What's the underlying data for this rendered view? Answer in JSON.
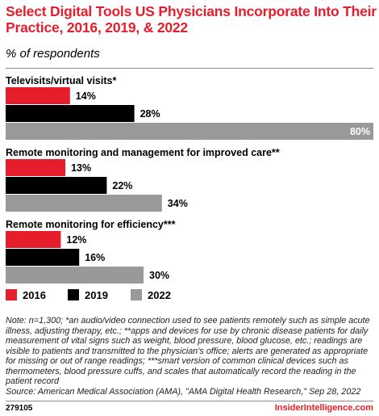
{
  "header": {
    "title": "Select Digital Tools US Physicians Incorporate Into Their Practice, 2016, 2019, & 2022",
    "subtitle": "% of respondents"
  },
  "chart_data": {
    "type": "bar",
    "orientation": "horizontal",
    "categories": [
      "Televisits/virtual visits*",
      "Remote monitoring and management for improved care**",
      "Remote monitoring for efficiency***"
    ],
    "series": [
      {
        "name": "2016",
        "color": "#e61e2b",
        "values": [
          14,
          13,
          12
        ],
        "labels": [
          "14%",
          "13%",
          "12%"
        ]
      },
      {
        "name": "2019",
        "color": "#000000",
        "values": [
          28,
          22,
          16
        ],
        "labels": [
          "28%",
          "22%",
          "16%"
        ]
      },
      {
        "name": "2022",
        "color": "#999999",
        "values": [
          80,
          34,
          30
        ],
        "labels": [
          "80%",
          "34%",
          "30%"
        ]
      }
    ],
    "xlim": [
      0,
      80
    ],
    "unit": "%",
    "grid": false,
    "legend": "bottom"
  },
  "notes": "Note: n=1,300; *an audio/video connection used to see patients remotely such as simple acute illness, adjusting therapy, etc.; **apps and devices for use by chronic disease patients for daily measurement of vital signs such as weight, blood pressure, blood glucose, etc.; readings are visible to patients and transmitted to the physician's office; alerts are generated as appropriate for missing or out of range readings; ***smart version of common clinical devices such as thermometers, blood pressure cuffs, and scales that automatically record the reading in the patient record",
  "source": "Source: American Medical Association (AMA), \"AMA Digital Health Research,\" Sep 28, 2022",
  "footer": {
    "chart_id": "279105",
    "brand": "InsiderIntelligence.com"
  }
}
